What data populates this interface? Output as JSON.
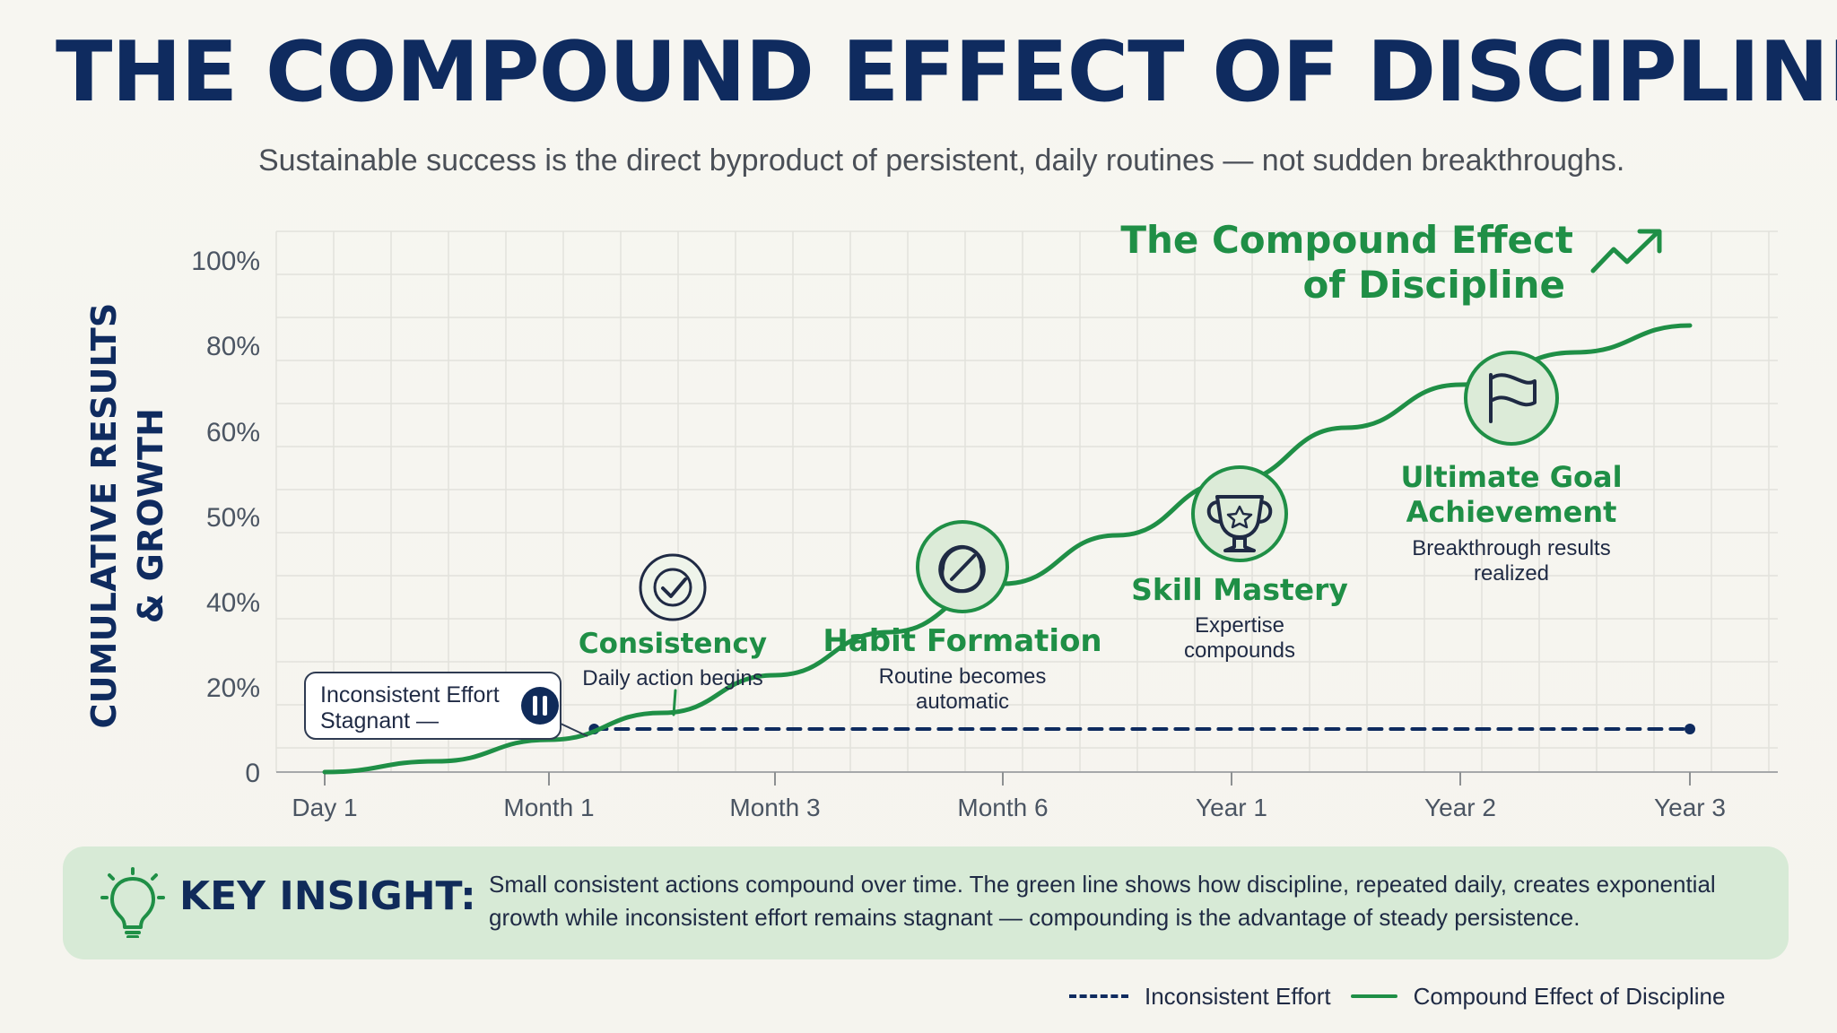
{
  "header": {
    "title": "THE COMPOUND EFFECT OF DISCIPLINE",
    "subtitle": "Sustainable success is the direct byproduct of persistent, daily routines — not sudden breakthroughs."
  },
  "chart_data": {
    "type": "line",
    "title": "",
    "ylabel_lines": [
      "CUMULATIVE RESULTS",
      "& GROWTH"
    ],
    "xlabel": "",
    "categories": [
      "Day 1",
      "Month 1",
      "Month 3",
      "Month 6",
      "Year 1",
      "Year 2",
      "Year 3"
    ],
    "y_tick_labels": [
      "0",
      "20%",
      "40%",
      "50%",
      "60%",
      "80%",
      "100%"
    ],
    "series": [
      {
        "name": "Inconsistent Effort",
        "color": "#0f2b5f",
        "style": "dashed",
        "points": [
          {
            "x": 1.2,
            "y": 8
          },
          {
            "x": 6.0,
            "y": 8
          }
        ]
      },
      {
        "name": "Compound Effect of Discipline",
        "color": "#1f8f46",
        "style": "solid",
        "points": [
          {
            "x": 0.0,
            "y": 0
          },
          {
            "x": 0.5,
            "y": 2
          },
          {
            "x": 1.0,
            "y": 6
          },
          {
            "x": 1.5,
            "y": 11
          },
          {
            "x": 2.0,
            "y": 18
          },
          {
            "x": 2.5,
            "y": 26
          },
          {
            "x": 3.0,
            "y": 35
          },
          {
            "x": 3.5,
            "y": 44
          },
          {
            "x": 4.0,
            "y": 54
          },
          {
            "x": 4.5,
            "y": 64
          },
          {
            "x": 5.0,
            "y": 72
          },
          {
            "x": 5.5,
            "y": 78
          },
          {
            "x": 6.0,
            "y": 83
          }
        ]
      }
    ],
    "curve_label_lines": [
      "The Compound Effect",
      "of Discipline"
    ],
    "annotations": [
      {
        "id": "inconsistent",
        "title": "Inconsistent Effort",
        "desc": "Stagnant —",
        "icon": "pause-icon"
      },
      {
        "id": "consistency",
        "title": "Consistency",
        "desc_lines": [
          "Daily action begins"
        ],
        "icon": "check-circle-icon"
      },
      {
        "id": "habit",
        "title": "Habit Formation",
        "desc_lines": [
          "Routine becomes",
          "automatic"
        ],
        "icon": "knot-icon"
      },
      {
        "id": "skill",
        "title": "Skill Mastery",
        "desc_lines": [
          "Expertise",
          "compounds"
        ],
        "icon": "trophy-icon"
      },
      {
        "id": "goal",
        "title_lines": [
          "Ultimate Goal",
          "Achievement"
        ],
        "desc_lines": [
          "Breakthrough results",
          "realized"
        ],
        "icon": "flag-icon"
      }
    ],
    "legend_position": "bottom-right",
    "grid": true,
    "colors": {
      "green": "#1f8f46",
      "navy": "#0f2b5f",
      "grid": "#e2e2dc"
    }
  },
  "insight": {
    "title": "KEY INSIGHT:",
    "text": "Small consistent actions compound over time. The green line shows how discipline, repeated daily, creates exponential growth while inconsistent effort remains stagnant — compounding is the advantage of steady persistence.",
    "icon": "lightbulb-icon"
  },
  "legend": {
    "dashed_label": "Inconsistent Effort",
    "solid_label": "Compound Effect of Discipline"
  }
}
